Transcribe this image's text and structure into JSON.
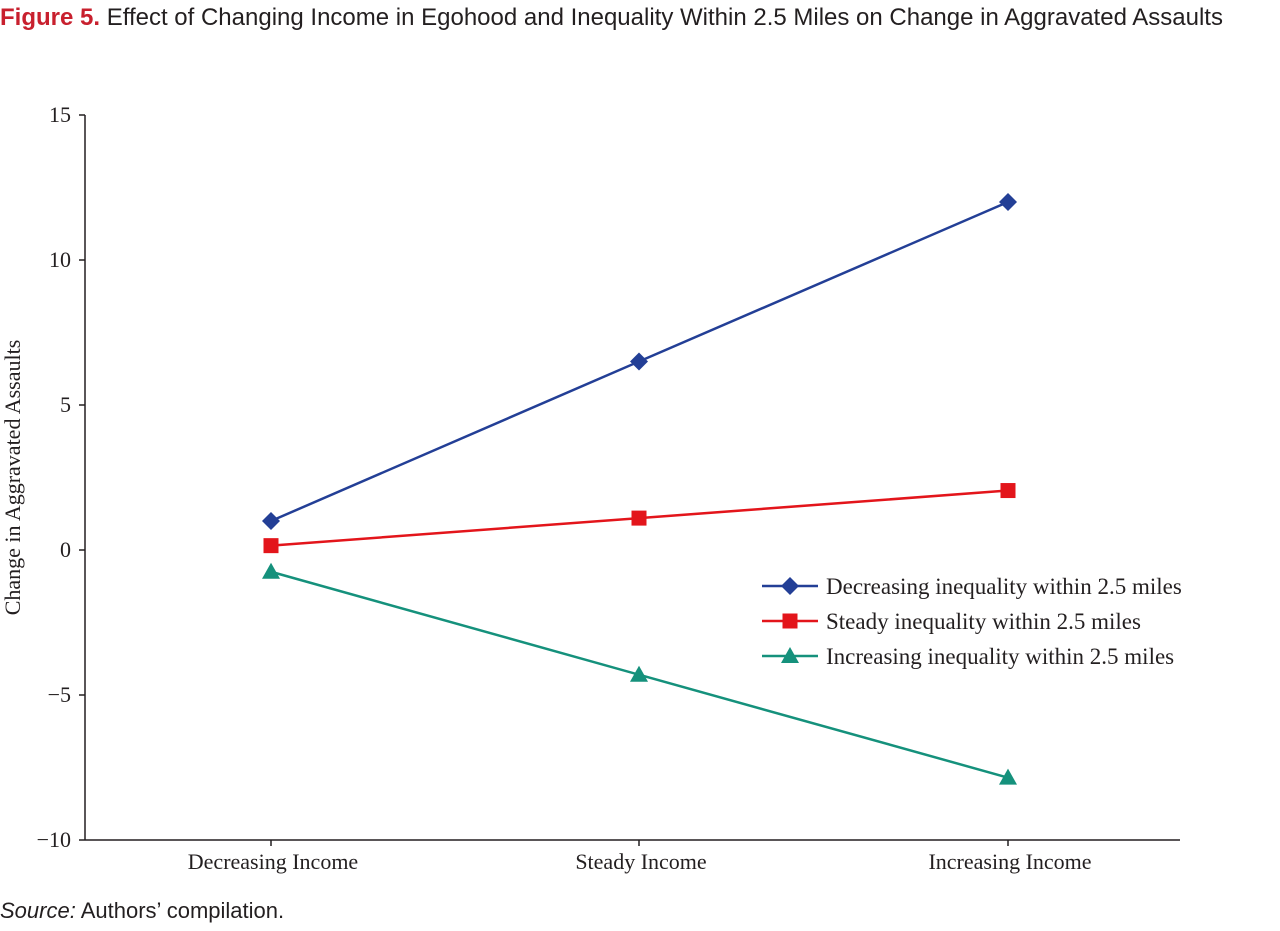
{
  "caption": {
    "label": "Figure 5.",
    "text": " Effect of Changing Income in Egohood and Inequality Within 2.5 Miles on Change in Aggravated Assaults"
  },
  "source": {
    "label": "Source:",
    "text": " Authors’ compilation."
  },
  "chart_data": {
    "type": "line",
    "title": "",
    "xlabel": "",
    "ylabel": "Change in Aggravated Assaults",
    "categories": [
      "Decreasing Income",
      "Steady Income",
      "Increasing Income"
    ],
    "ylim": [
      -10,
      15
    ],
    "yticks": [
      15,
      10,
      5,
      0,
      -5,
      -10
    ],
    "ytick_labels": [
      "15",
      "10",
      "5",
      "0",
      "−5",
      "−10"
    ],
    "grid": false,
    "legend_position": "right",
    "series": [
      {
        "name": "Decreasing inequality within 2.5 miles",
        "values": [
          1.0,
          6.5,
          12.0
        ],
        "color": "#233f96",
        "marker": "diamond"
      },
      {
        "name": "Steady inequality within 2.5 miles",
        "values": [
          0.15,
          1.1,
          2.05
        ],
        "color": "#e3151b",
        "marker": "square"
      },
      {
        "name": "Increasing inequality within 2.5 miles",
        "values": [
          -0.75,
          -4.3,
          -7.85
        ],
        "color": "#15917c",
        "marker": "triangle"
      }
    ]
  }
}
